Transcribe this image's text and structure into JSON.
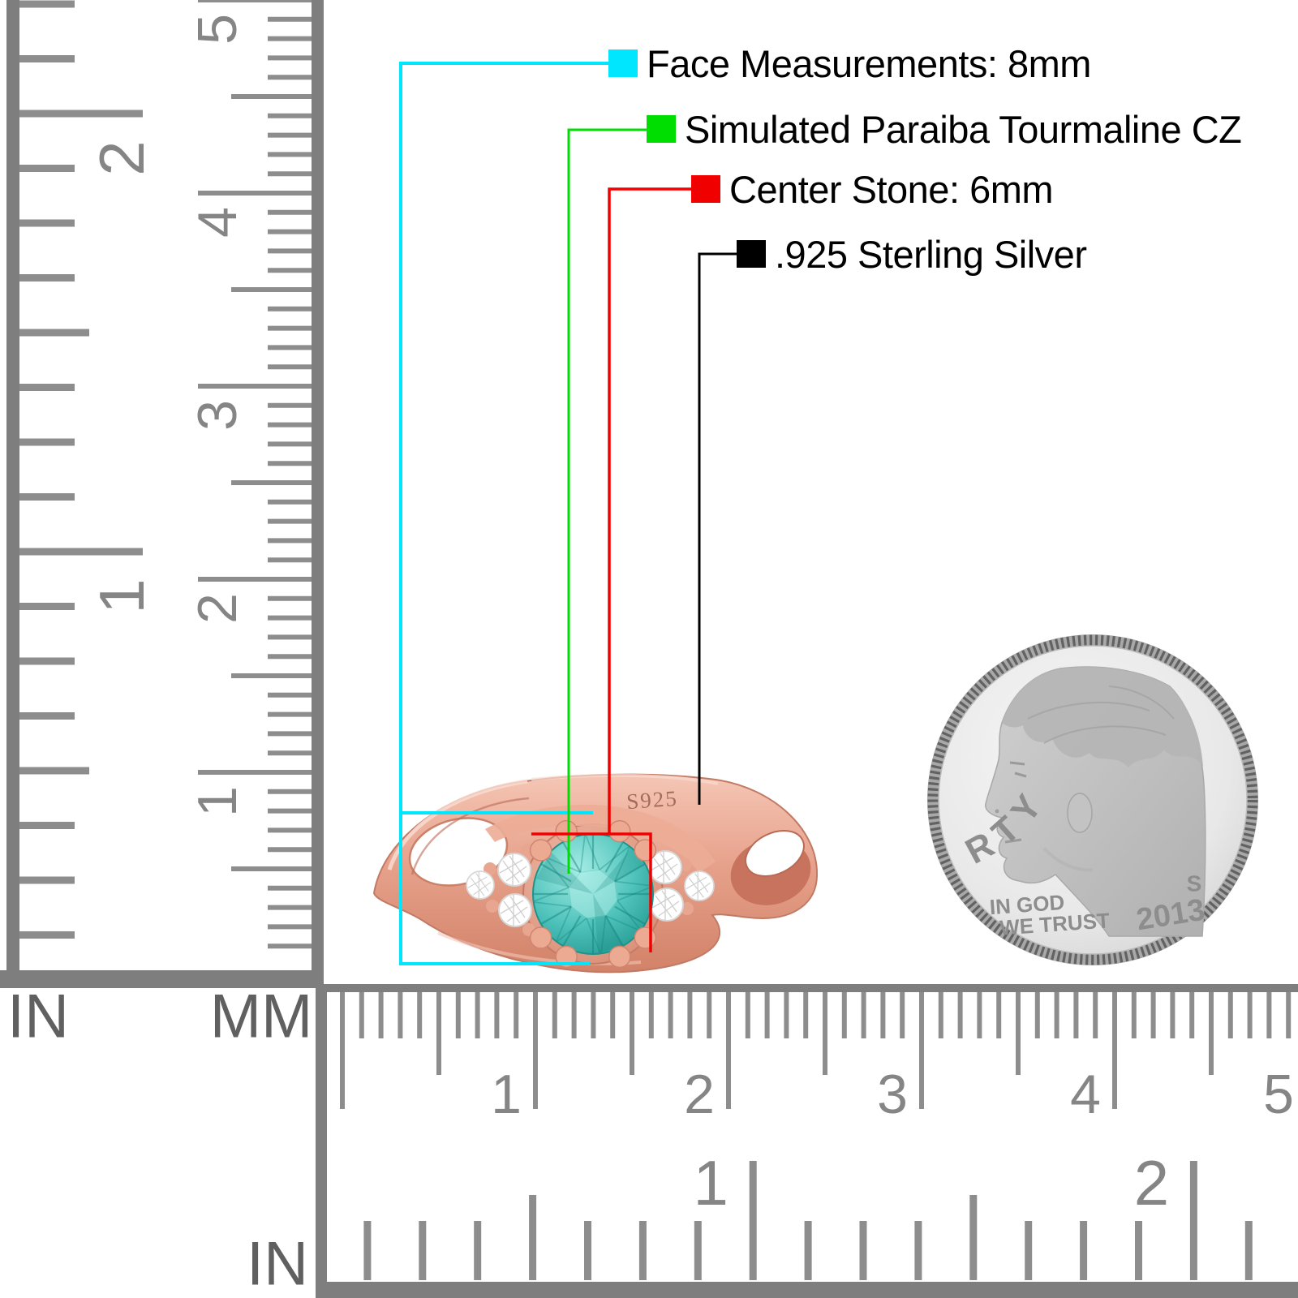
{
  "callouts": [
    {
      "label": "Face Measurements: 8mm",
      "color": "#00E6FF",
      "swatch_name": "cyan-swatch"
    },
    {
      "label": "Simulated Paraiba Tourmaline CZ",
      "color": "#00DD00",
      "swatch_name": "green-swatch"
    },
    {
      "label": "Center Stone: 6mm",
      "color": "#F10000",
      "swatch_name": "red-swatch"
    },
    {
      "label": ".925 Sterling Silver",
      "color": "#000000",
      "swatch_name": "black-swatch"
    }
  ],
  "ring": {
    "engraving": "S925",
    "band_color": "#E7A28C",
    "stone_color": "#4FC3BB",
    "accent_stone_color": "#FFFFFF"
  },
  "coin": {
    "liberty": "LIBERTY",
    "motto_line1": "IN GOD",
    "motto_line2": "WE TRUST",
    "date": "2013",
    "mint_mark": "S"
  },
  "rulers": {
    "left": {
      "inch_label": "IN",
      "mm_label": "MM",
      "inch_numbers": [
        "1",
        "2"
      ],
      "mm_numbers": [
        "1",
        "2",
        "3",
        "4",
        "5"
      ]
    },
    "bottom": {
      "inch_label": "IN",
      "inch_numbers": [
        "1",
        "2"
      ],
      "mm_numbers": [
        "1",
        "2",
        "3",
        "4",
        "5"
      ]
    }
  }
}
